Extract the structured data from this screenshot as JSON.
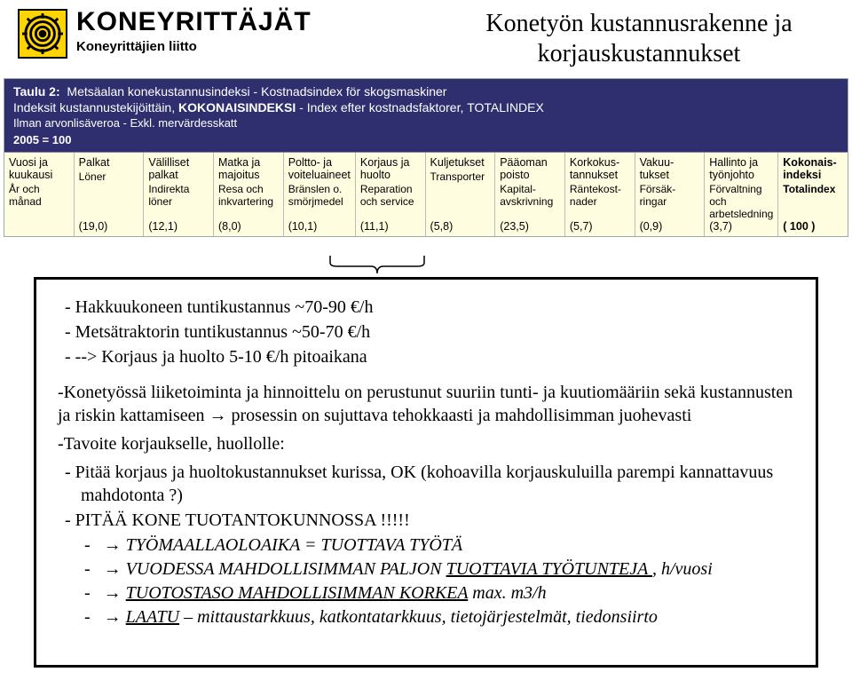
{
  "brand": {
    "title": "KONEYRITTÄJÄT",
    "subtitle": "Koneyrittäjien liitto"
  },
  "doc_title_line1": "Konetyön kustannusrakenne ja",
  "doc_title_line2": "korjauskustannukset",
  "table": {
    "caption_label": "Taulu 2:",
    "caption_fi": "Metsäalan konekustannusindeksi",
    "caption_sv": "Kostnadsindex för skogsmaskiner",
    "sub_fi_a": "Indeksit kustannustekijöittäin,",
    "sub_fi_b": "KOKONAISINDEKSI",
    "sub_sv_a": "Index efter kostnadsfaktorer,",
    "sub_sv_b": "TOTALINDEX",
    "vat_fi": "Ilman arvonlisäveroa",
    "vat_sv": "Exkl. mervärdesskatt",
    "base": "2005 = 100",
    "cols": [
      {
        "fi": "Vuosi ja kuukausi",
        "sv": "År och månad",
        "val": ""
      },
      {
        "fi": "Palkat",
        "sv": "Löner",
        "val": "(19,0)"
      },
      {
        "fi": "Välilliset palkat",
        "sv": "Indirekta löner",
        "val": "(12,1)"
      },
      {
        "fi": "Matka ja majoitus",
        "sv": "Resa och inkvartering",
        "val": "(8,0)"
      },
      {
        "fi": "Poltto- ja voiteluaineet",
        "sv": "Bränslen o. smörjmedel",
        "val": "(10,1)"
      },
      {
        "fi": "Korjaus ja huolto",
        "sv": "Reparation och service",
        "val": "(11,1)"
      },
      {
        "fi": "Kuljetukset",
        "sv": "Transporter",
        "val": "(5,8)"
      },
      {
        "fi": "Pääoman poisto",
        "sv": "Kapital-avskrivning",
        "val": "(23,5)"
      },
      {
        "fi": "Korkokus-tannukset",
        "sv": "Räntekost-nader",
        "val": "(5,7)"
      },
      {
        "fi": "Vakuu-tukset",
        "sv": "Försäk-ringar",
        "val": "(0,9)"
      },
      {
        "fi": "Hallinto ja työnjohto",
        "sv": "Förvaltning och arbetsledning",
        "val": "(3,7)"
      },
      {
        "fi": "Kokonais-indeksi",
        "sv": "Totalindex",
        "val": "( 100 )"
      }
    ]
  },
  "content": {
    "b1": "Hakkuukoneen tuntikustannus ~70-90 €/h",
    "b2": "Metsätraktorin tuntikustannus ~50-70 €/h",
    "b3": "--> Korjaus ja huolto 5-10 €/h pitoaikana",
    "p1a": "-Konetyössä liiketoiminta ja hinnoittelu on perustunut suuriin tunti- ja kuutiomääriin sekä kustannusten ja riskin kattamiseen ",
    "p1b": " prosessin on sujuttava tehokkaasti ja mahdollisimman juohevasti",
    "p2": "-Tavoite korjaukselle, huollolle:",
    "t1": "Pitää korjaus ja huoltokustannukset kurissa, OK  (kohoavilla korjauskuluilla parempi kannattavuus mahdotonta ?)",
    "t2": "PITÄÄ KONE TUOTANTOKUNNOSSA !!!!!",
    "s1a": " TYÖMAALLAOLOAIKA = TUOTTAVA TYÖTÄ",
    "s2a": " VUODESSA MAHDOLLISIMMAN PALJON ",
    "s2b": "TUOTTAVIA TYÖTUNTEJA ",
    "s2c": " , h/vuosi",
    "s3a": " ",
    "s3b": "TUOTOSTASO MAHDOLLISIMMAN KORKEA",
    "s3c": "  max. m3/h",
    "s4a": " ",
    "s4b": "LAATU",
    "s4c": " – mittaustarkkuus, katkontatarkkuus, tietojärjestelmät, tiedonsiirto",
    "arrow": "→"
  },
  "style": {
    "header_bg": "#2f2f6f",
    "table_bg": "#fffde0",
    "logo_bg": "#ffd400"
  }
}
